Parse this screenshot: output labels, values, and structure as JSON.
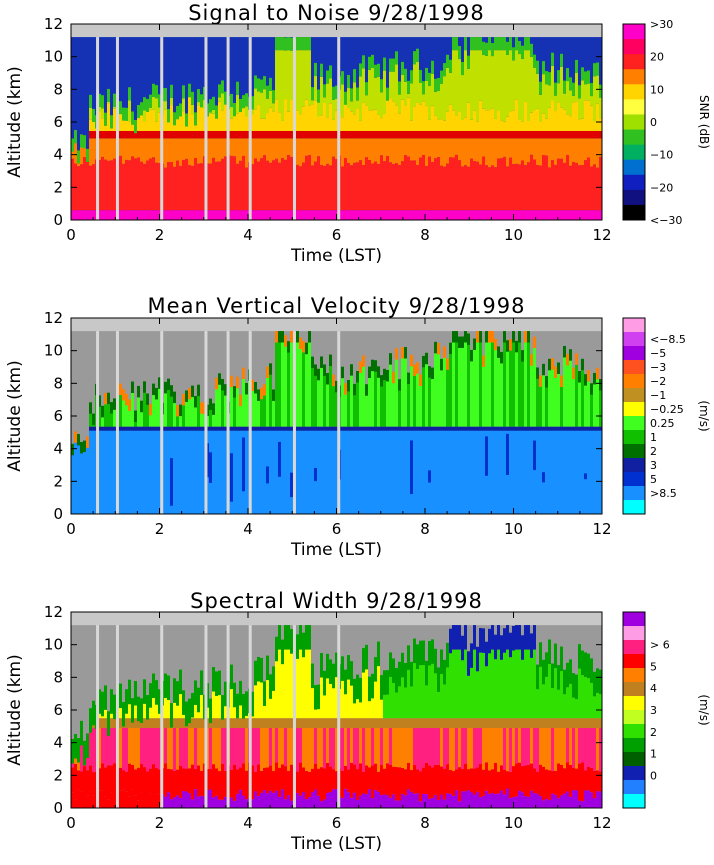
{
  "chart_data": [
    {
      "type": "heatmap",
      "title": "Signal to Noise  9/28/1998",
      "xlabel": "Time (LST)",
      "ylabel": "Altitude (km)",
      "xlim": [
        0,
        12
      ],
      "ylim": [
        0,
        12
      ],
      "x_ticks": [
        "0",
        "2",
        "4",
        "6",
        "8",
        "10",
        "12"
      ],
      "y_ticks": [
        "0",
        "2",
        "4",
        "6",
        "8",
        "10",
        "12"
      ],
      "colorbar": {
        "label": "SNR (dB)",
        "ticks": [
          ">30",
          "20",
          "10",
          "0",
          "−10",
          "−20",
          "<−30"
        ],
        "gradient": [
          "#ff00c8",
          "#ff0060",
          "#ff2020",
          "#ff8000",
          "#ffd400",
          "#ffff40",
          "#a0e000",
          "#30c020",
          "#00b060",
          "#0070d0",
          "#1020c0",
          "#101080",
          "#000000"
        ]
      },
      "gap_times_lst": [
        0.6,
        1.05,
        2.05,
        3.05,
        3.55,
        4.05,
        5.05,
        6.05
      ],
      "data_top_km": 11.2,
      "bright_band_km": 5.2,
      "noise_color": "#1632b4"
    },
    {
      "type": "heatmap",
      "title": "Mean Vertical Velocity  9/28/1998",
      "xlabel": "Time (LST)",
      "ylabel": "Altitude (km)",
      "xlim": [
        0,
        12
      ],
      "ylim": [
        0,
        12
      ],
      "x_ticks": [
        "0",
        "2",
        "4",
        "6",
        "8",
        "10",
        "12"
      ],
      "y_ticks": [
        "0",
        "2",
        "4",
        "6",
        "8",
        "10",
        "12"
      ],
      "colorbar": {
        "label": "(m/s)",
        "ticks": [
          "<−8.5",
          "−5",
          "−3",
          "−2",
          "−1",
          "−0.25",
          "0.25",
          "1",
          "2",
          "3",
          "5",
          ">8.5"
        ],
        "levels": [
          "#ff9ce6",
          "#d040f0",
          "#a000e0",
          "#ff5020",
          "#ff8000",
          "#c09020",
          "#ffff00",
          "#40ff20",
          "#10c000",
          "#007000",
          "#1020a0",
          "#0030d0",
          "#1890ff",
          "#00ffff"
        ]
      },
      "gap_times_lst": [
        0.6,
        1.05,
        2.05,
        3.05,
        3.55,
        4.05,
        5.05,
        6.05
      ],
      "data_top_km": 11.2,
      "bright_band_km": 5.2,
      "noise_color": "#9a9a9a"
    },
    {
      "type": "heatmap",
      "title": "Spectral Width  9/28/1998",
      "xlabel": "Time (LST)",
      "ylabel": "Altitude (km)",
      "xlim": [
        0,
        12
      ],
      "ylim": [
        0,
        12
      ],
      "x_ticks": [
        "0",
        "2",
        "4",
        "6",
        "8",
        "10",
        "12"
      ],
      "y_ticks": [
        "0",
        "2",
        "4",
        "6",
        "8",
        "10",
        "12"
      ],
      "colorbar": {
        "label": "(m/s)",
        "ticks": [
          "> 6",
          "5",
          "4",
          "3",
          "2",
          "1",
          "0"
        ],
        "levels": [
          "#a000e0",
          "#ff9ce6",
          "#ff2080",
          "#ff0000",
          "#ff8000",
          "#c08020",
          "#ffff00",
          "#c0ff20",
          "#30e000",
          "#00a000",
          "#006000",
          "#1020b0",
          "#2080ff",
          "#00ffff"
        ]
      },
      "gap_times_lst": [
        0.6,
        1.05,
        2.05,
        3.05,
        3.55,
        4.05,
        5.05,
        6.05
      ],
      "data_top_km": 11.2,
      "bright_band_km": 5.2,
      "noise_color": "#9a9a9a"
    }
  ]
}
